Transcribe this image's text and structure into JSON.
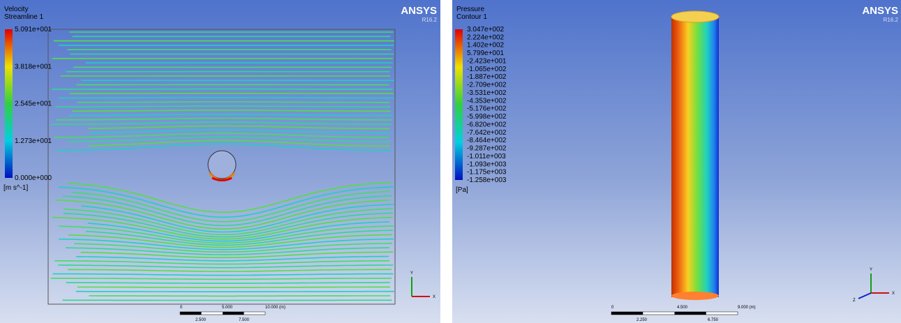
{
  "panels": [
    {
      "title": "Velocity",
      "subtitle": "Streamline 1",
      "legend_labels": [
        "5.091e+001",
        "3.818e+001",
        "2.545e+001",
        "1.273e+001",
        "0.000e+000"
      ],
      "unit": "[m s^-1]",
      "logo": "ANSYS",
      "version": "R16.2",
      "scale_top": [
        "0",
        "5.000",
        "10.000 (m)"
      ],
      "scale_bottom": [
        "2.500",
        "7.500"
      ],
      "axes": [
        "Y",
        "X"
      ]
    },
    {
      "title": "Pressure",
      "subtitle": "Contour 1",
      "legend_labels": [
        "3.047e+002",
        "2.224e+002",
        "1.402e+002",
        "5.799e+001",
        "-2.423e+001",
        "-1.065e+002",
        "-1.887e+002",
        "-2.709e+002",
        "-3.531e+002",
        "-4.353e+002",
        "-5.176e+002",
        "-5.998e+002",
        "-6.820e+002",
        "-7.642e+002",
        "-8.464e+002",
        "-9.287e+002",
        "-1.011e+003",
        "-1.093e+003",
        "-1.175e+003",
        "-1.258e+003"
      ],
      "unit": "[Pa]",
      "logo": "ANSYS",
      "version": "R16.2",
      "scale_top": [
        "0",
        "4.500",
        "9.000 (m)"
      ],
      "scale_bottom": [
        "2.250",
        "6.750"
      ],
      "axes": [
        "Y",
        "X",
        "Z"
      ]
    }
  ]
}
